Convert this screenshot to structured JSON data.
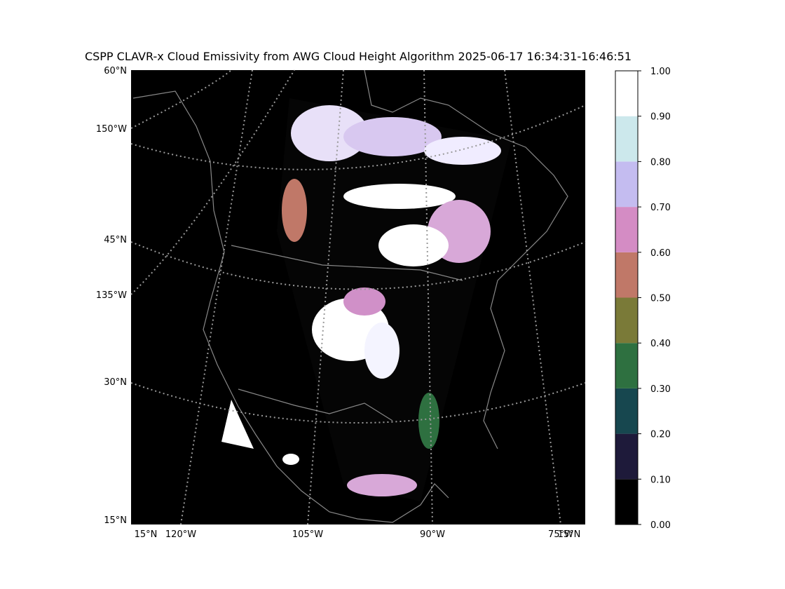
{
  "title": "CSPP CLAVR-x Cloud Emissivity from AWG Cloud Height Algorithm 2025-06-17 16:34:31-16:46:51",
  "map": {
    "left_labels": [
      "60°N",
      "150°W",
      "45°N",
      "135°W",
      "30°N",
      "15°N"
    ],
    "bottom_labels": [
      "15°N",
      "120°W",
      "105°W",
      "90°W",
      "75°W",
      "15°N"
    ]
  },
  "colorbar": {
    "lim": [
      0,
      1
    ],
    "ticks": [
      {
        "value": 0,
        "label": "0.00"
      },
      {
        "value": 0.1,
        "label": "0.10"
      },
      {
        "value": 0.2,
        "label": "0.20"
      },
      {
        "value": 0.3,
        "label": "0.30"
      },
      {
        "value": 0.4,
        "label": "0.40"
      },
      {
        "value": 0.5,
        "label": "0.50"
      },
      {
        "value": 0.6,
        "label": "0.60"
      },
      {
        "value": 0.7,
        "label": "0.70"
      },
      {
        "value": 0.8,
        "label": "0.80"
      },
      {
        "value": 0.9,
        "label": "0.90"
      },
      {
        "value": 1,
        "label": "1.00"
      }
    ],
    "colors": [
      "#000000",
      "#1e1a3a",
      "#17474f",
      "#2e7040",
      "#7a7a38",
      "#c07868",
      "#d48cc4",
      "#c4bcf0",
      "#cce8ec",
      "#ffffff"
    ]
  }
}
